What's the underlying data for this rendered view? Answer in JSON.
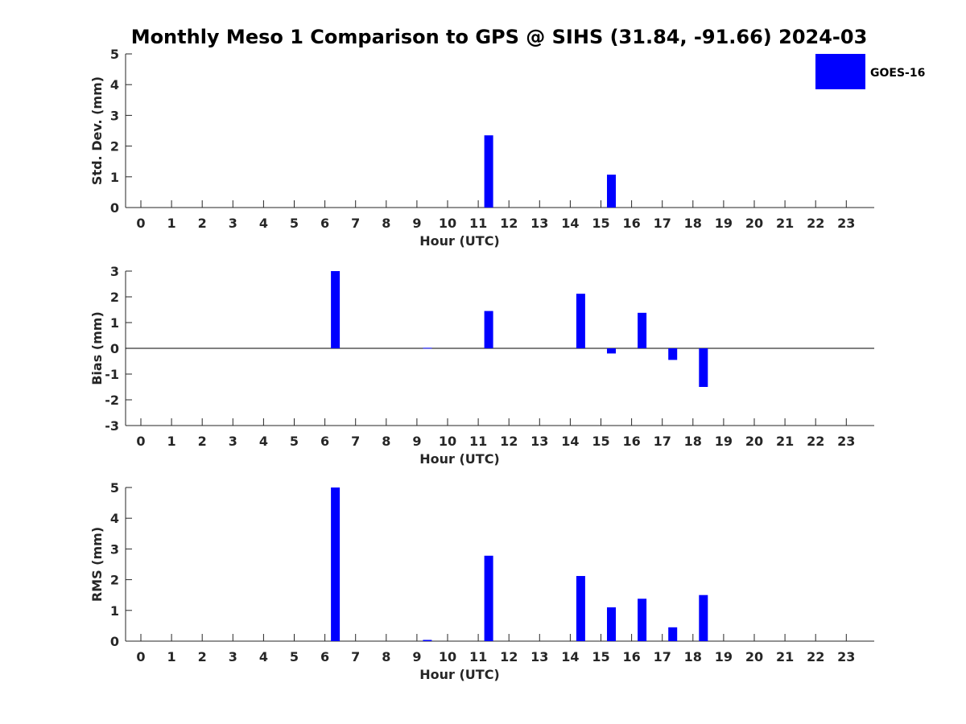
{
  "title": "Monthly Meso 1 Comparison to GPS @ SIHS (31.84, -91.66) 2024-03",
  "legend": {
    "label": "GOES-16",
    "color": "#0000FF",
    "position": "top-right"
  },
  "chart_data": [
    {
      "type": "bar",
      "ylabel": "Std. Dev. (mm)",
      "xlabel": "Hour (UTC)",
      "ylim": [
        0,
        5
      ],
      "yticks": [
        0,
        1,
        2,
        3,
        4,
        5
      ],
      "categories": [
        0,
        1,
        2,
        3,
        4,
        5,
        6,
        7,
        8,
        9,
        10,
        11,
        12,
        13,
        14,
        15,
        16,
        17,
        18,
        19,
        20,
        21,
        22,
        23
      ],
      "series": [
        {
          "name": "GOES-16",
          "color": "#0000FF",
          "values": [
            0,
            0,
            0,
            0,
            0,
            0,
            0,
            0,
            0,
            0,
            0,
            2.35,
            0,
            0,
            0,
            1.07,
            0,
            0,
            0,
            0,
            0,
            0,
            0,
            0
          ]
        }
      ],
      "zero_line": false,
      "grid": false
    },
    {
      "type": "bar",
      "ylabel": "Bias (mm)",
      "xlabel": "Hour (UTC)",
      "ylim": [
        -3,
        3
      ],
      "yticks": [
        -3,
        -2,
        -1,
        0,
        1,
        2,
        3
      ],
      "categories": [
        0,
        1,
        2,
        3,
        4,
        5,
        6,
        7,
        8,
        9,
        10,
        11,
        12,
        13,
        14,
        15,
        16,
        17,
        18,
        19,
        20,
        21,
        22,
        23
      ],
      "series": [
        {
          "name": "GOES-16",
          "color": "#0000FF",
          "values": [
            0,
            0,
            0,
            0,
            0,
            0,
            3.0,
            0,
            0,
            0.02,
            0,
            1.45,
            0,
            0,
            2.12,
            -0.2,
            1.38,
            -0.45,
            -1.5,
            0,
            0,
            0,
            0,
            0
          ]
        }
      ],
      "zero_line": true,
      "grid": false
    },
    {
      "type": "bar",
      "ylabel": "RMS (mm)",
      "xlabel": "Hour (UTC)",
      "ylim": [
        0,
        5
      ],
      "yticks": [
        0,
        1,
        2,
        3,
        4,
        5
      ],
      "categories": [
        0,
        1,
        2,
        3,
        4,
        5,
        6,
        7,
        8,
        9,
        10,
        11,
        12,
        13,
        14,
        15,
        16,
        17,
        18,
        19,
        20,
        21,
        22,
        23
      ],
      "series": [
        {
          "name": "GOES-16",
          "color": "#0000FF",
          "values": [
            0,
            0,
            0,
            0,
            0,
            0,
            5.0,
            0,
            0,
            0.04,
            0,
            2.78,
            0,
            0,
            2.12,
            1.1,
            1.38,
            0.45,
            1.5,
            0,
            0,
            0,
            0,
            0
          ]
        }
      ],
      "zero_line": false,
      "grid": false
    }
  ]
}
